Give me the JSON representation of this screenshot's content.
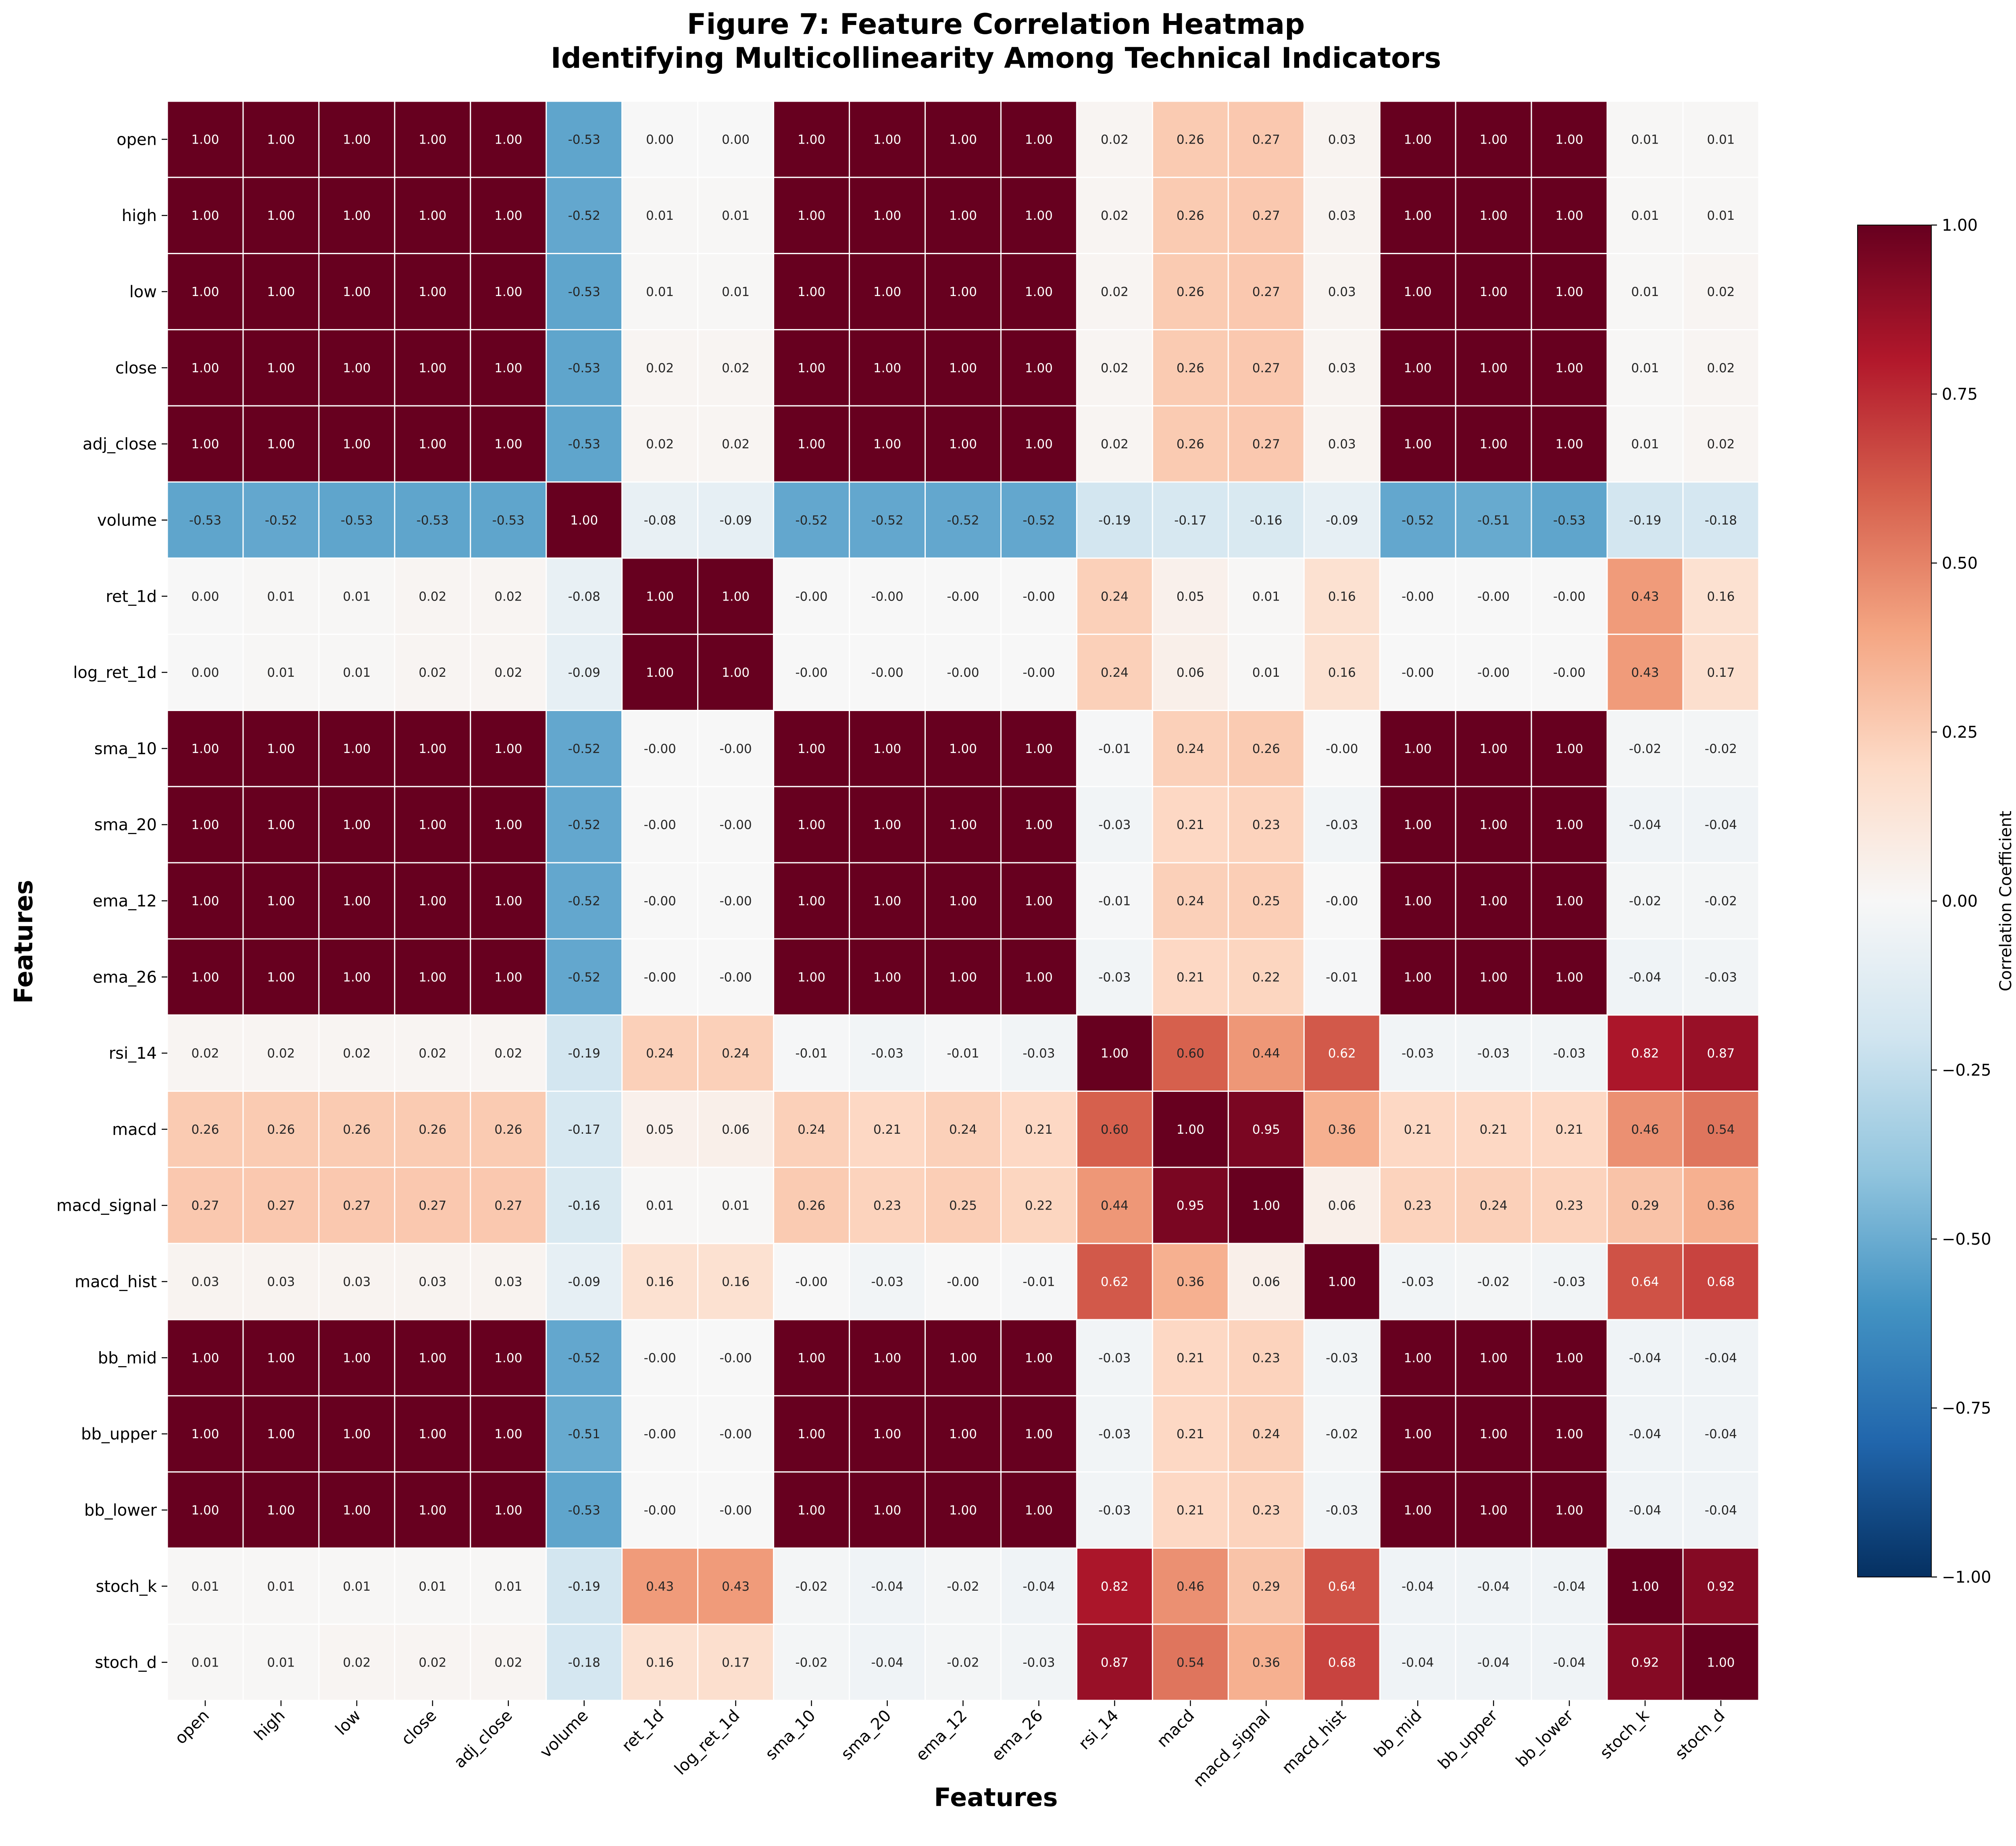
{
  "chart_data": {
    "type": "heatmap",
    "title": "Figure 7: Feature Correlation Heatmap",
    "subtitle": "Identifying Multicollinearity Among Technical Indicators",
    "xlabel": "Features",
    "ylabel": "Features",
    "colorbar_label": "Correlation Coefficient",
    "colorbar_range": [
      -1.0,
      1.0
    ],
    "colorbar_ticks": [
      "1.00",
      "0.75",
      "0.50",
      "0.25",
      "0.00",
      "−0.25",
      "−0.50",
      "−0.75",
      "−1.00"
    ],
    "colorbar_tick_values": [
      1.0,
      0.75,
      0.5,
      0.25,
      0.0,
      -0.25,
      -0.5,
      -0.75,
      -1.0
    ],
    "colormap": "RdBu_r",
    "features": [
      "open",
      "high",
      "low",
      "close",
      "adj_close",
      "volume",
      "ret_1d",
      "log_ret_1d",
      "sma_10",
      "sma_20",
      "ema_12",
      "ema_26",
      "rsi_14",
      "macd",
      "macd_signal",
      "macd_hist",
      "bb_mid",
      "bb_upper",
      "bb_lower",
      "stoch_k",
      "stoch_d"
    ],
    "labels": [
      [
        "1.00",
        "1.00",
        "1.00",
        "1.00",
        "1.00",
        "-0.53",
        "0.00",
        "0.00",
        "1.00",
        "1.00",
        "1.00",
        "1.00",
        "0.02",
        "0.26",
        "0.27",
        "0.03",
        "1.00",
        "1.00",
        "1.00",
        "0.01",
        "0.01"
      ],
      [
        "1.00",
        "1.00",
        "1.00",
        "1.00",
        "1.00",
        "-0.52",
        "0.01",
        "0.01",
        "1.00",
        "1.00",
        "1.00",
        "1.00",
        "0.02",
        "0.26",
        "0.27",
        "0.03",
        "1.00",
        "1.00",
        "1.00",
        "0.01",
        "0.01"
      ],
      [
        "1.00",
        "1.00",
        "1.00",
        "1.00",
        "1.00",
        "-0.53",
        "0.01",
        "0.01",
        "1.00",
        "1.00",
        "1.00",
        "1.00",
        "0.02",
        "0.26",
        "0.27",
        "0.03",
        "1.00",
        "1.00",
        "1.00",
        "0.01",
        "0.02"
      ],
      [
        "1.00",
        "1.00",
        "1.00",
        "1.00",
        "1.00",
        "-0.53",
        "0.02",
        "0.02",
        "1.00",
        "1.00",
        "1.00",
        "1.00",
        "0.02",
        "0.26",
        "0.27",
        "0.03",
        "1.00",
        "1.00",
        "1.00",
        "0.01",
        "0.02"
      ],
      [
        "1.00",
        "1.00",
        "1.00",
        "1.00",
        "1.00",
        "-0.53",
        "0.02",
        "0.02",
        "1.00",
        "1.00",
        "1.00",
        "1.00",
        "0.02",
        "0.26",
        "0.27",
        "0.03",
        "1.00",
        "1.00",
        "1.00",
        "0.01",
        "0.02"
      ],
      [
        "-0.53",
        "-0.52",
        "-0.53",
        "-0.53",
        "-0.53",
        "1.00",
        "-0.08",
        "-0.09",
        "-0.52",
        "-0.52",
        "-0.52",
        "-0.52",
        "-0.19",
        "-0.17",
        "-0.16",
        "-0.09",
        "-0.52",
        "-0.51",
        "-0.53",
        "-0.19",
        "-0.18"
      ],
      [
        "0.00",
        "0.01",
        "0.01",
        "0.02",
        "0.02",
        "-0.08",
        "1.00",
        "1.00",
        "-0.00",
        "-0.00",
        "-0.00",
        "-0.00",
        "0.24",
        "0.05",
        "0.01",
        "0.16",
        "-0.00",
        "-0.00",
        "-0.00",
        "0.43",
        "0.16"
      ],
      [
        "0.00",
        "0.01",
        "0.01",
        "0.02",
        "0.02",
        "-0.09",
        "1.00",
        "1.00",
        "-0.00",
        "-0.00",
        "-0.00",
        "-0.00",
        "0.24",
        "0.06",
        "0.01",
        "0.16",
        "-0.00",
        "-0.00",
        "-0.00",
        "0.43",
        "0.17"
      ],
      [
        "1.00",
        "1.00",
        "1.00",
        "1.00",
        "1.00",
        "-0.52",
        "-0.00",
        "-0.00",
        "1.00",
        "1.00",
        "1.00",
        "1.00",
        "-0.01",
        "0.24",
        "0.26",
        "-0.00",
        "1.00",
        "1.00",
        "1.00",
        "-0.02",
        "-0.02"
      ],
      [
        "1.00",
        "1.00",
        "1.00",
        "1.00",
        "1.00",
        "-0.52",
        "-0.00",
        "-0.00",
        "1.00",
        "1.00",
        "1.00",
        "1.00",
        "-0.03",
        "0.21",
        "0.23",
        "-0.03",
        "1.00",
        "1.00",
        "1.00",
        "-0.04",
        "-0.04"
      ],
      [
        "1.00",
        "1.00",
        "1.00",
        "1.00",
        "1.00",
        "-0.52",
        "-0.00",
        "-0.00",
        "1.00",
        "1.00",
        "1.00",
        "1.00",
        "-0.01",
        "0.24",
        "0.25",
        "-0.00",
        "1.00",
        "1.00",
        "1.00",
        "-0.02",
        "-0.02"
      ],
      [
        "1.00",
        "1.00",
        "1.00",
        "1.00",
        "1.00",
        "-0.52",
        "-0.00",
        "-0.00",
        "1.00",
        "1.00",
        "1.00",
        "1.00",
        "-0.03",
        "0.21",
        "0.22",
        "-0.01",
        "1.00",
        "1.00",
        "1.00",
        "-0.04",
        "-0.03"
      ],
      [
        "0.02",
        "0.02",
        "0.02",
        "0.02",
        "0.02",
        "-0.19",
        "0.24",
        "0.24",
        "-0.01",
        "-0.03",
        "-0.01",
        "-0.03",
        "1.00",
        "0.60",
        "0.44",
        "0.62",
        "-0.03",
        "-0.03",
        "-0.03",
        "0.82",
        "0.87"
      ],
      [
        "0.26",
        "0.26",
        "0.26",
        "0.26",
        "0.26",
        "-0.17",
        "0.05",
        "0.06",
        "0.24",
        "0.21",
        "0.24",
        "0.21",
        "0.60",
        "1.00",
        "0.95",
        "0.36",
        "0.21",
        "0.21",
        "0.21",
        "0.46",
        "0.54"
      ],
      [
        "0.27",
        "0.27",
        "0.27",
        "0.27",
        "0.27",
        "-0.16",
        "0.01",
        "0.01",
        "0.26",
        "0.23",
        "0.25",
        "0.22",
        "0.44",
        "0.95",
        "1.00",
        "0.06",
        "0.23",
        "0.24",
        "0.23",
        "0.29",
        "0.36"
      ],
      [
        "0.03",
        "0.03",
        "0.03",
        "0.03",
        "0.03",
        "-0.09",
        "0.16",
        "0.16",
        "-0.00",
        "-0.03",
        "-0.00",
        "-0.01",
        "0.62",
        "0.36",
        "0.06",
        "1.00",
        "-0.03",
        "-0.02",
        "-0.03",
        "0.64",
        "0.68"
      ],
      [
        "1.00",
        "1.00",
        "1.00",
        "1.00",
        "1.00",
        "-0.52",
        "-0.00",
        "-0.00",
        "1.00",
        "1.00",
        "1.00",
        "1.00",
        "-0.03",
        "0.21",
        "0.23",
        "-0.03",
        "1.00",
        "1.00",
        "1.00",
        "-0.04",
        "-0.04"
      ],
      [
        "1.00",
        "1.00",
        "1.00",
        "1.00",
        "1.00",
        "-0.51",
        "-0.00",
        "-0.00",
        "1.00",
        "1.00",
        "1.00",
        "1.00",
        "-0.03",
        "0.21",
        "0.24",
        "-0.02",
        "1.00",
        "1.00",
        "1.00",
        "-0.04",
        "-0.04"
      ],
      [
        "1.00",
        "1.00",
        "1.00",
        "1.00",
        "1.00",
        "-0.53",
        "-0.00",
        "-0.00",
        "1.00",
        "1.00",
        "1.00",
        "1.00",
        "-0.03",
        "0.21",
        "0.23",
        "-0.03",
        "1.00",
        "1.00",
        "1.00",
        "-0.04",
        "-0.04"
      ],
      [
        "0.01",
        "0.01",
        "0.01",
        "0.01",
        "0.01",
        "-0.19",
        "0.43",
        "0.43",
        "-0.02",
        "-0.04",
        "-0.02",
        "-0.04",
        "0.82",
        "0.46",
        "0.29",
        "0.64",
        "-0.04",
        "-0.04",
        "-0.04",
        "1.00",
        "0.92"
      ],
      [
        "0.01",
        "0.01",
        "0.02",
        "0.02",
        "0.02",
        "-0.18",
        "0.16",
        "0.17",
        "-0.02",
        "-0.04",
        "-0.02",
        "-0.03",
        "0.87",
        "0.54",
        "0.36",
        "0.68",
        "-0.04",
        "-0.04",
        "-0.04",
        "0.92",
        "1.00"
      ]
    ]
  }
}
